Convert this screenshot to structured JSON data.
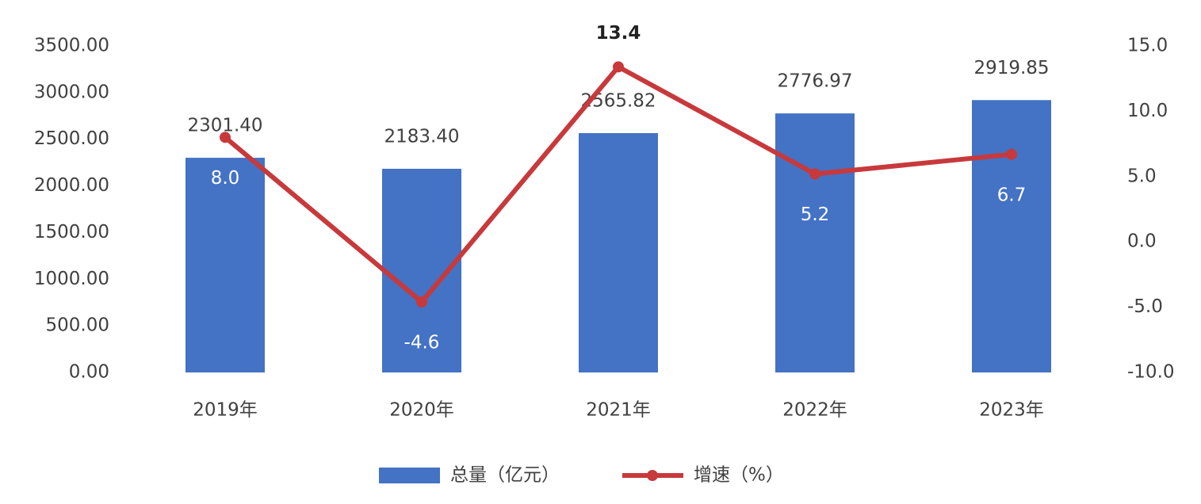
{
  "chart_data": {
    "type": "bar",
    "categories": [
      "2019年",
      "2020年",
      "2021年",
      "2022年",
      "2023年"
    ],
    "series": [
      {
        "name": "总量（亿元）",
        "type": "bar",
        "color": "#4472c4",
        "values": [
          2301.4,
          2183.4,
          2565.82,
          2776.97,
          2919.85
        ],
        "value_labels": [
          "2301.40",
          "2183.40",
          "2565.82",
          "2776.97",
          "2919.85"
        ]
      },
      {
        "name": "增速（%）",
        "type": "line",
        "axis": "y2",
        "color": "#c8393b",
        "values": [
          8.0,
          -4.6,
          13.4,
          5.2,
          6.7
        ],
        "value_labels": [
          "8.0",
          "-4.6",
          "13.4",
          "5.2",
          "6.7"
        ]
      }
    ],
    "ylim": [
      0,
      3500
    ],
    "yticks": [
      {
        "value": 0,
        "label": "0.00"
      },
      {
        "value": 500,
        "label": "500.00"
      },
      {
        "value": 1000,
        "label": "1000.00"
      },
      {
        "value": 1500,
        "label": "1500.00"
      },
      {
        "value": 2000,
        "label": "2000.00"
      },
      {
        "value": 2500,
        "label": "2500.00"
      },
      {
        "value": 3000,
        "label": "3000.00"
      },
      {
        "value": 3500,
        "label": "3500.00"
      }
    ],
    "y2lim": [
      -10,
      15
    ],
    "y2ticks": [
      {
        "value": -10,
        "label": "-10.0"
      },
      {
        "value": -5,
        "label": "-5.0"
      },
      {
        "value": 0,
        "label": "0.0"
      },
      {
        "value": 5,
        "label": "5.0"
      },
      {
        "value": 10,
        "label": "10.0"
      },
      {
        "value": 15,
        "label": "15.0"
      }
    ],
    "legend": "bottom"
  }
}
